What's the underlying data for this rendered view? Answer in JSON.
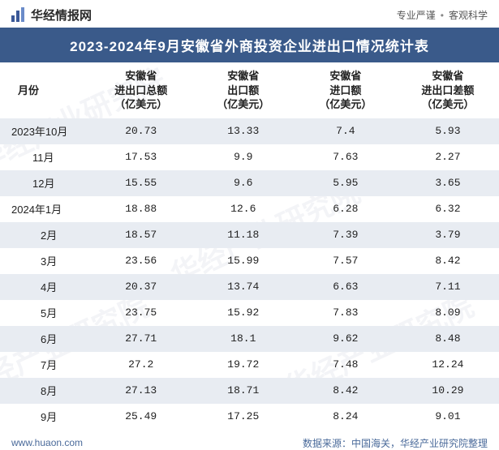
{
  "watermark_text": "华经产业研究院",
  "header": {
    "brand": "华经情报网",
    "slogan_left": "专业严谨",
    "slogan_right": "客观科学"
  },
  "title": "2023-2024年9月安徽省外商投资企业进出口情况统计表",
  "columns": {
    "c0": "月份",
    "c1a": "安徽省",
    "c1b": "进出口总额",
    "c1c": "（亿美元）",
    "c2a": "安徽省",
    "c2b": "出口额",
    "c2c": "（亿美元）",
    "c3a": "安徽省",
    "c3b": "进口额",
    "c3c": "（亿美元）",
    "c4a": "安徽省",
    "c4b": "进出口差额",
    "c4c": "（亿美元）"
  },
  "rows": [
    {
      "m": "2023年10月",
      "v1": "20.73",
      "v2": "13.33",
      "v3": "7.4",
      "v4": "5.93",
      "stripe": true,
      "indent": 0
    },
    {
      "m": "11月",
      "v1": "17.53",
      "v2": "9.9",
      "v3": "7.63",
      "v4": "2.27",
      "stripe": false,
      "indent": 1
    },
    {
      "m": "12月",
      "v1": "15.55",
      "v2": "9.6",
      "v3": "5.95",
      "v4": "3.65",
      "stripe": true,
      "indent": 1
    },
    {
      "m": "2024年1月",
      "v1": "18.88",
      "v2": "12.6",
      "v3": "6.28",
      "v4": "6.32",
      "stripe": false,
      "indent": 0
    },
    {
      "m": "2月",
      "v1": "18.57",
      "v2": "11.18",
      "v3": "7.39",
      "v4": "3.79",
      "stripe": true,
      "indent": 2
    },
    {
      "m": "3月",
      "v1": "23.56",
      "v2": "15.99",
      "v3": "7.57",
      "v4": "8.42",
      "stripe": false,
      "indent": 2
    },
    {
      "m": "4月",
      "v1": "20.37",
      "v2": "13.74",
      "v3": "6.63",
      "v4": "7.11",
      "stripe": true,
      "indent": 2
    },
    {
      "m": "5月",
      "v1": "23.75",
      "v2": "15.92",
      "v3": "7.83",
      "v4": "8.09",
      "stripe": false,
      "indent": 2
    },
    {
      "m": "6月",
      "v1": "27.71",
      "v2": "18.1",
      "v3": "9.62",
      "v4": "8.48",
      "stripe": true,
      "indent": 2
    },
    {
      "m": "7月",
      "v1": "27.2",
      "v2": "19.72",
      "v3": "7.48",
      "v4": "12.24",
      "stripe": false,
      "indent": 2
    },
    {
      "m": "8月",
      "v1": "27.13",
      "v2": "18.71",
      "v3": "8.42",
      "v4": "10.29",
      "stripe": true,
      "indent": 2
    },
    {
      "m": "9月",
      "v1": "25.49",
      "v2": "17.25",
      "v3": "8.24",
      "v4": "9.01",
      "stripe": false,
      "indent": 2
    }
  ],
  "footer": {
    "site": "www.huaon.com",
    "source": "数据来源：中国海关，华经产业研究院整理"
  },
  "colors": {
    "header_bg": "#3a5a8a",
    "stripe_bg": "#e8ecf2",
    "footer_text": "#4a6a9a"
  }
}
